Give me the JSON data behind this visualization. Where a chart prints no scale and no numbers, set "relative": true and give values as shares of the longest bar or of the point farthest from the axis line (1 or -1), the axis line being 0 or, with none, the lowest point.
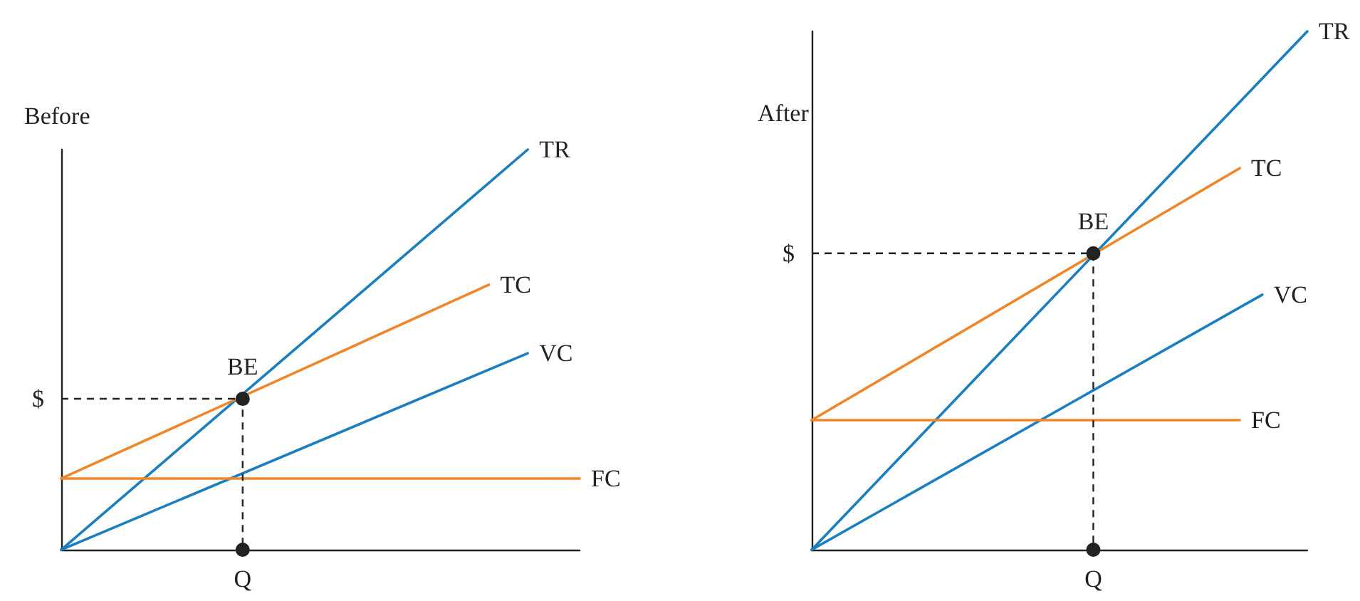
{
  "chart_data": [
    {
      "type": "line",
      "title": "Before",
      "relative": true,
      "marker": "none",
      "categories": [
        null,
        null,
        null,
        null,
        null,
        null,
        null,
        null,
        null,
        null,
        null,
        null,
        null,
        null,
        null,
        null,
        null,
        null,
        null,
        null,
        null,
        null,
        null,
        null,
        null,
        null,
        null,
        null,
        null,
        null,
        null,
        null,
        null,
        null,
        null,
        null,
        null,
        null,
        null,
        null,
        null
      ],
      "series": [
        {
          "name": "TR",
          "color": "#1a7fc1",
          "values": [
            0,
            null,
            null,
            null,
            null,
            null,
            null,
            null,
            null,
            null,
            null,
            null,
            null,
            null,
            null,
            null,
            null,
            null,
            null,
            null,
            null,
            null,
            null,
            null,
            null,
            null,
            null,
            null,
            null,
            null,
            null,
            null,
            null,
            null,
            null,
            null,
            1,
            null,
            null,
            null,
            null
          ]
        },
        {
          "name": "TC",
          "color": "#f0862a",
          "values": [
            0.178,
            null,
            null,
            null,
            null,
            null,
            null,
            null,
            null,
            null,
            null,
            null,
            null,
            null,
            null,
            null,
            null,
            null,
            null,
            null,
            null,
            null,
            null,
            null,
            null,
            null,
            null,
            null,
            null,
            null,
            null,
            null,
            null,
            0.662,
            null,
            null,
            null,
            null,
            null,
            null,
            null
          ]
        },
        {
          "name": "VC",
          "color": "#1a7fc1",
          "values": [
            0,
            null,
            null,
            null,
            null,
            null,
            null,
            null,
            null,
            null,
            null,
            null,
            null,
            null,
            null,
            null,
            null,
            null,
            null,
            null,
            null,
            null,
            null,
            null,
            null,
            null,
            null,
            null,
            null,
            null,
            null,
            null,
            null,
            null,
            null,
            null,
            0.491,
            null,
            null,
            null,
            null
          ]
        },
        {
          "name": "FC",
          "color": "#f0862a",
          "values": [
            0.178,
            null,
            null,
            null,
            null,
            null,
            null,
            null,
            null,
            null,
            null,
            null,
            null,
            null,
            null,
            null,
            null,
            null,
            null,
            null,
            null,
            null,
            null,
            null,
            null,
            null,
            null,
            null,
            null,
            null,
            null,
            null,
            null,
            null,
            null,
            null,
            null,
            null,
            null,
            null,
            0.178
          ]
        }
      ],
      "annotations": [
        "BE",
        "$",
        "Q"
      ]
    },
    {
      "type": "line",
      "title": "After",
      "relative": true,
      "marker": "none",
      "categories": [
        null,
        null,
        null,
        null,
        null,
        null,
        null,
        null,
        null,
        null,
        null,
        null,
        null,
        null,
        null,
        null,
        null,
        null,
        null,
        null,
        null,
        null,
        null,
        null,
        null,
        null,
        null,
        null,
        null,
        null,
        null,
        null,
        null,
        null,
        null,
        null,
        null,
        null,
        null,
        null,
        null,
        null,
        null,
        null,
        null
      ],
      "series": [
        {
          "name": "TR",
          "color": "#1a7fc1",
          "values": [
            0,
            null,
            null,
            null,
            null,
            null,
            null,
            null,
            null,
            null,
            null,
            null,
            null,
            null,
            null,
            null,
            null,
            null,
            null,
            null,
            null,
            null,
            null,
            null,
            null,
            null,
            null,
            null,
            null,
            null,
            null,
            null,
            null,
            null,
            null,
            null,
            null,
            null,
            null,
            null,
            null,
            null,
            null,
            null,
            1
          ]
        },
        {
          "name": "TC",
          "color": "#f0862a",
          "values": [
            0.25,
            null,
            null,
            null,
            null,
            null,
            null,
            null,
            null,
            null,
            null,
            null,
            null,
            null,
            null,
            null,
            null,
            null,
            null,
            null,
            null,
            null,
            null,
            null,
            null,
            null,
            null,
            null,
            null,
            null,
            null,
            null,
            null,
            null,
            null,
            null,
            null,
            null,
            0.736,
            null,
            null,
            null,
            null,
            null,
            null
          ]
        },
        {
          "name": "VC",
          "color": "#1a7fc1",
          "values": [
            0,
            null,
            null,
            null,
            null,
            null,
            null,
            null,
            null,
            null,
            null,
            null,
            null,
            null,
            null,
            null,
            null,
            null,
            null,
            null,
            null,
            null,
            null,
            null,
            null,
            null,
            null,
            null,
            null,
            null,
            null,
            null,
            null,
            null,
            null,
            null,
            null,
            null,
            null,
            null,
            0.492,
            null,
            null,
            null,
            null
          ]
        },
        {
          "name": "FC",
          "color": "#f0862a",
          "values": [
            0.25,
            null,
            null,
            null,
            null,
            null,
            null,
            null,
            null,
            null,
            null,
            null,
            null,
            null,
            null,
            null,
            null,
            null,
            null,
            null,
            null,
            null,
            null,
            null,
            null,
            null,
            null,
            null,
            null,
            null,
            null,
            null,
            null,
            null,
            null,
            null,
            null,
            null,
            0.25,
            null,
            null,
            null,
            null,
            null,
            null
          ]
        }
      ],
      "annotations": [
        "BE",
        "$",
        "Q"
      ]
    }
  ]
}
